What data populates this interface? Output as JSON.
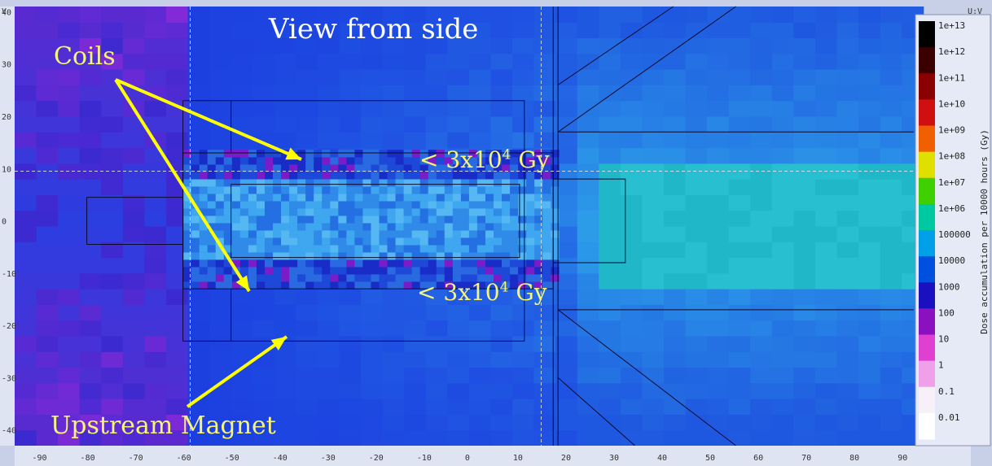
{
  "chart_data": {
    "type": "heatmap",
    "title": "View from side",
    "corner_left": "V",
    "corner_right": "U:V",
    "xlim": [
      -95,
      92
    ],
    "ylim": [
      -43,
      41
    ],
    "x_ticks": [
      "-90",
      "-80",
      "-70",
      "-60",
      "-50",
      "-40",
      "-30",
      "-20",
      "-10",
      "0",
      "10",
      "20",
      "30",
      "40",
      "50",
      "60",
      "70",
      "80",
      "90"
    ],
    "y_ticks": [
      "40",
      "30",
      "20",
      "10",
      "0",
      "-10",
      "-20",
      "-30",
      "-40"
    ],
    "colorbar": {
      "label": "Dose accumulation per 10000 hours (Gy)",
      "ticks": [
        "1e+13",
        "1e+12",
        "1e+11",
        "1e+10",
        "1e+09",
        "1e+08",
        "1e+07",
        "1e+06",
        "100000",
        "10000",
        "1000",
        "100",
        "10",
        "1",
        "0.1",
        "0.01"
      ],
      "scale": "log",
      "range": [
        0.01,
        10000000000000.0
      ]
    },
    "annotations": [
      {
        "text": "Coils"
      },
      {
        "text": "Upstream Magnet"
      },
      {
        "text_prefix": "< 3x10",
        "exponent": "4",
        "unit": "Gy"
      },
      {
        "text_prefix": "< 3x10",
        "exponent": "4",
        "unit": "Gy"
      }
    ],
    "colors": {
      "annotation": "#f6f57a",
      "arrow": "#ffff00",
      "title": "#ffffff"
    }
  }
}
